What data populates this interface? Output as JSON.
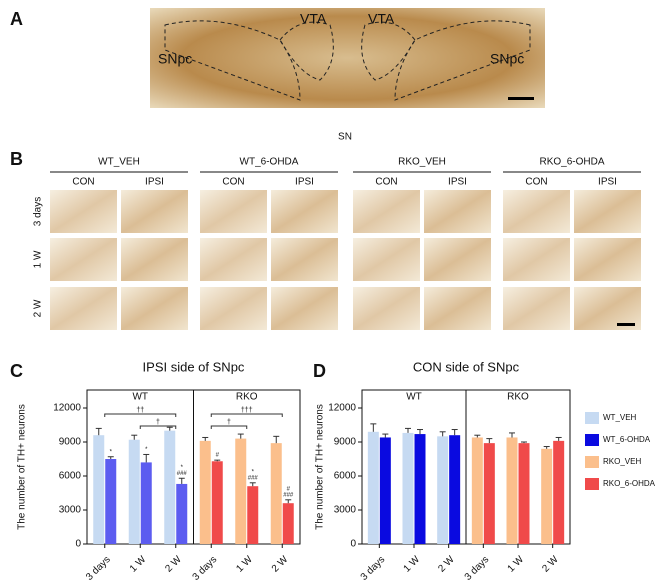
{
  "panel_labels": [
    "A",
    "B",
    "C",
    "D"
  ],
  "panel_a": {
    "labels": [
      "VTA",
      "VTA",
      "SNpc",
      "SNpc"
    ]
  },
  "panel_b": {
    "title": "SN",
    "groups": [
      "WT_VEH",
      "WT_6-OHDA",
      "RKO_VEH",
      "RKO_6-OHDA"
    ],
    "sides": [
      "CON",
      "IPSI"
    ],
    "rows": [
      "3 days",
      "1 W",
      "2 W"
    ]
  },
  "chart_data": [
    {
      "type": "bar",
      "title": "IPSI side of SNpc",
      "y_label": "The number of TH+ neurons",
      "categories": [
        "3 days",
        "1 W",
        "2 W"
      ],
      "ylim": [
        0,
        12000
      ],
      "yticks": [
        0,
        3000,
        6000,
        9000,
        12000
      ],
      "groups": [
        {
          "name": "WT",
          "series": [
            {
              "name": "WT_VEH",
              "color": "#c6daf2",
              "values": [
                9600,
                9200,
                10000
              ],
              "errors": [
                600,
                400,
                300
              ]
            },
            {
              "name": "WT_6-OHDA",
              "color": "#5c5cf0",
              "values": [
                7500,
                7200,
                5300
              ],
              "errors": [
                200,
                700,
                500
              ],
              "marks": [
                [
                  "*"
                ],
                [
                  "*"
                ],
                [
                  "*",
                  "###"
                ]
              ]
            }
          ],
          "brackets": [
            {
              "from": 0,
              "to": 2,
              "label": "††"
            },
            {
              "from": 1,
              "to": 2,
              "label": "†"
            }
          ]
        },
        {
          "name": "RKO",
          "series": [
            {
              "name": "RKO_VEH",
              "color": "#fbbf8c",
              "values": [
                9100,
                9300,
                8900
              ],
              "errors": [
                300,
                400,
                600
              ]
            },
            {
              "name": "RKO_6-OHDA",
              "color": "#f04a4a",
              "values": [
                7300,
                5100,
                3600
              ],
              "errors": [
                100,
                300,
                300
              ],
              "marks": [
                [
                  "#"
                ],
                [
                  "*",
                  "###"
                ],
                [
                  "#",
                  "###"
                ]
              ]
            }
          ],
          "brackets": [
            {
              "from": 0,
              "to": 2,
              "label": "†††"
            },
            {
              "from": 0,
              "to": 1,
              "label": "†"
            }
          ]
        }
      ]
    },
    {
      "type": "bar",
      "title": "CON side of SNpc",
      "y_label": "The number of TH+ neurons",
      "categories": [
        "3 days",
        "1 W",
        "2 W"
      ],
      "ylim": [
        0,
        12000
      ],
      "yticks": [
        0,
        3000,
        6000,
        9000,
        12000
      ],
      "legend": "right",
      "groups": [
        {
          "name": "WT",
          "series": [
            {
              "name": "WT_VEH",
              "color": "#c6daf2",
              "values": [
                9900,
                9800,
                9500
              ],
              "errors": [
                700,
                400,
                400
              ]
            },
            {
              "name": "WT_6-OHDA",
              "color": "#0a0ae0",
              "values": [
                9400,
                9700,
                9600
              ],
              "errors": [
                300,
                400,
                500
              ]
            }
          ]
        },
        {
          "name": "RKO",
          "series": [
            {
              "name": "RKO_VEH",
              "color": "#fbbf8c",
              "values": [
                9400,
                9400,
                8400
              ],
              "errors": [
                200,
                400,
                200
              ]
            },
            {
              "name": "RKO_6-OHDA",
              "color": "#f04a4a",
              "values": [
                8900,
                8900,
                9100
              ],
              "errors": [
                400,
                100,
                300
              ]
            }
          ]
        }
      ]
    }
  ]
}
